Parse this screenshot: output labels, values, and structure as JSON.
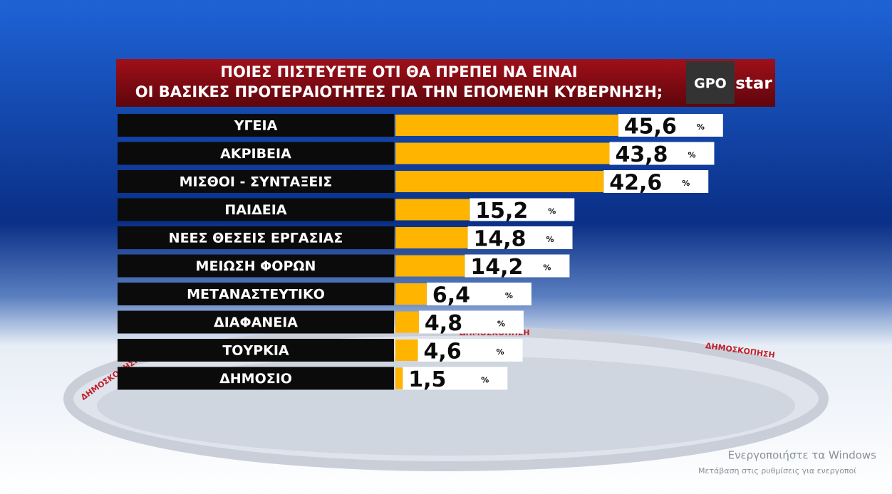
{
  "chart_data": {
    "type": "bar",
    "orientation": "horizontal",
    "title": [
      "ΠΟΙΕΣ ΠΙΣΤΕΥΕΤΕ ΟΤΙ ΘΑ ΠΡΕΠΕΙ ΝΑ ΕΙΝΑΙ",
      "ΟΙ ΒΑΣΙΚΕΣ ΠΡΟΤΕΡΑΙΟΤΗΤΕΣ ΓΙΑ ΤΗΝ ΕΠΟΜΕΝΗ ΚΥΒΕΡΝΗΣΗ;"
    ],
    "logo": [
      "GPO",
      "star"
    ],
    "categories": [
      "ΥΓΕΙΑ",
      "ΑΚΡΙΒΕΙΑ",
      "ΜΙΣΘΟΙ - ΣΥΝΤΑΞΕΙΣ",
      "ΠΑΙΔΕΙΑ",
      "ΝΕΕΣ ΘΕΣΕΙΣ ΕΡΓΑΣΙΑΣ",
      "ΜΕΙΩΣΗ ΦΟΡΩΝ",
      "ΜΕΤΑΝΑΣΤΕΥΤΙΚΟ",
      "ΔΙΑΦΑΝΕΙΑ",
      "ΤΟΥΡΚΙΑ",
      "ΔΗΜΟΣΙΟ"
    ],
    "values": [
      45.6,
      43.8,
      42.6,
      15.2,
      14.8,
      14.2,
      6.4,
      4.8,
      4.6,
      1.5
    ],
    "value_labels": [
      "45,6",
      "43,8",
      "42,6",
      "15,2",
      "14,8",
      "14,2",
      "6,4",
      "4,8",
      "4,6",
      "1,5"
    ],
    "unit": "%",
    "color": "#ffb400",
    "background_text": "ΔΗΜΟΣΚΟΠΗΣΗ",
    "watermark": [
      "Ενεργοποιήστε τα Windows",
      "Μετάβαση στις ρυθμίσεις για ενεργοποί"
    ]
  }
}
